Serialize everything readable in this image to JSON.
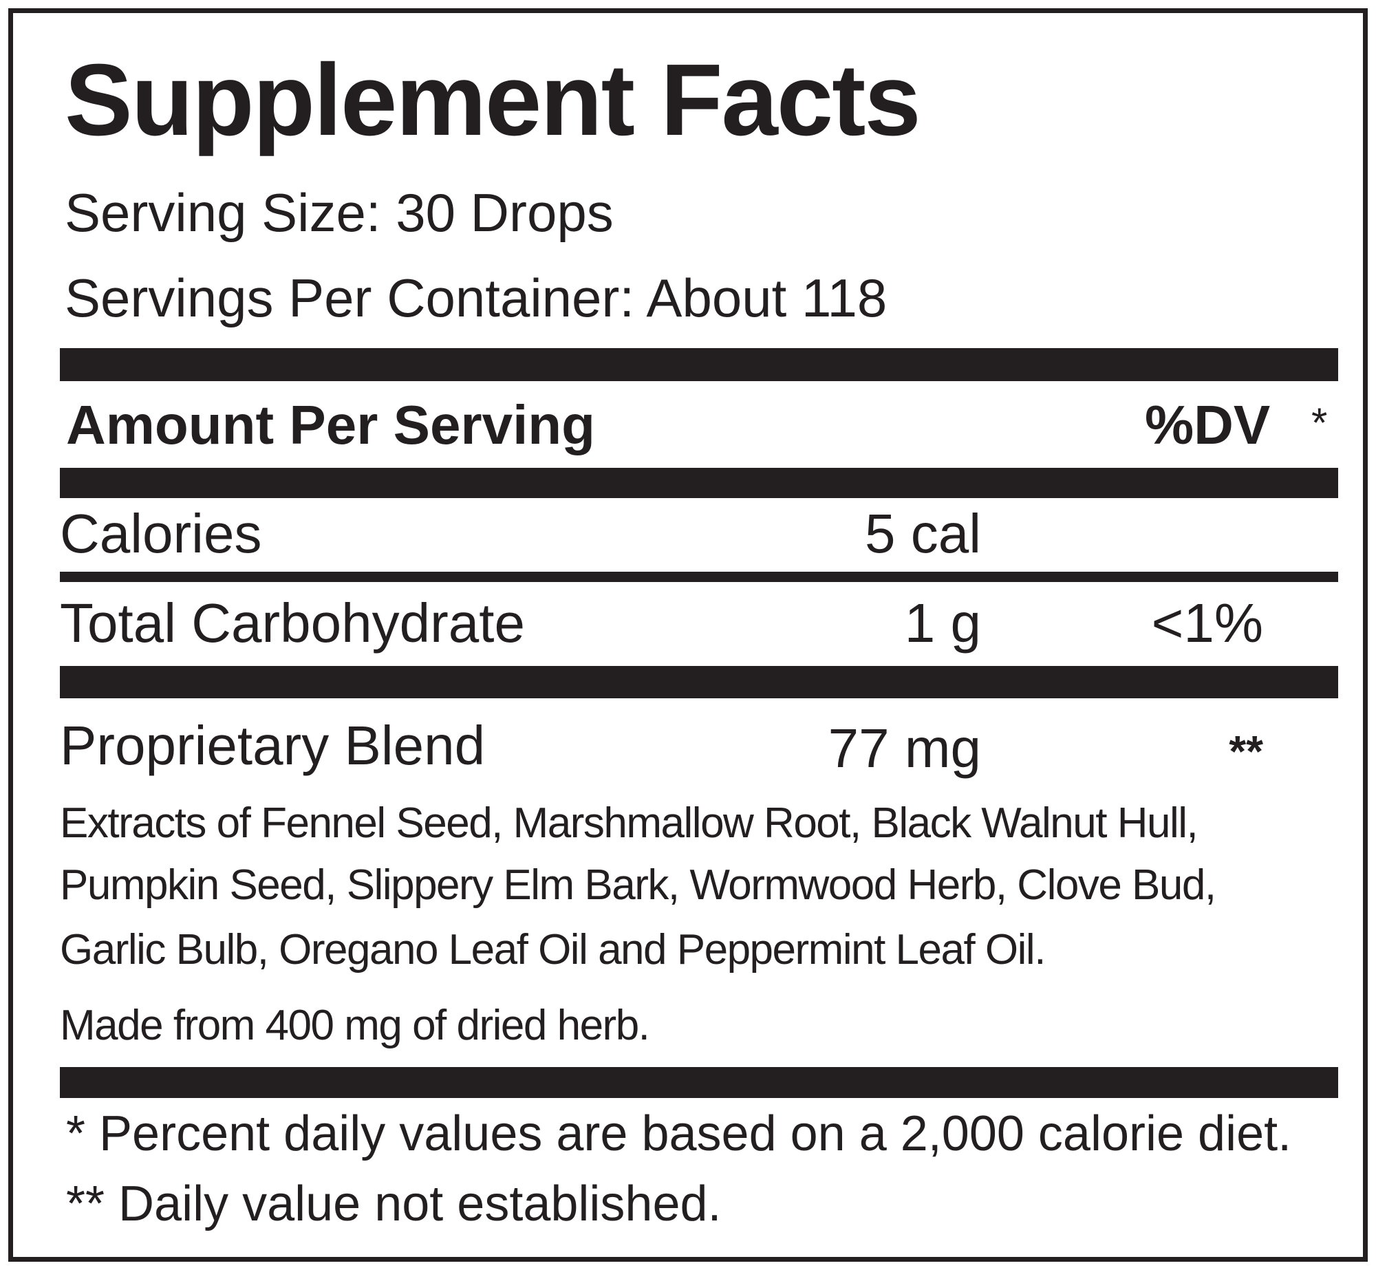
{
  "title": "Supplement Facts",
  "serving_size": "Serving Size: 30 Drops",
  "servings_per_container": "Servings Per Container: About 118",
  "header": {
    "amount_label": "Amount Per Serving",
    "dv_label": "%DV",
    "dv_mark": "*"
  },
  "rows": [
    {
      "name": "Calories",
      "amount": "5 cal",
      "dv": ""
    },
    {
      "name": "Total Carbohydrate",
      "amount": "1 g",
      "dv": "<1%"
    },
    {
      "name": "Proprietary Blend",
      "amount": "77 mg",
      "dv": "**"
    }
  ],
  "ingredients_lines": [
    "Extracts of Fennel Seed, Marshmallow Root, Black Walnut Hull,",
    "Pumpkin Seed, Slippery Elm Bark, Wormwood Herb, Clove Bud,",
    "Garlic Bulb, Oregano Leaf Oil and Peppermint Leaf Oil."
  ],
  "made_from": "Made from 400 mg of dried herb.",
  "footnotes": [
    "* Percent daily values are based on a 2,000 calorie diet.",
    "** Daily value not established."
  ]
}
